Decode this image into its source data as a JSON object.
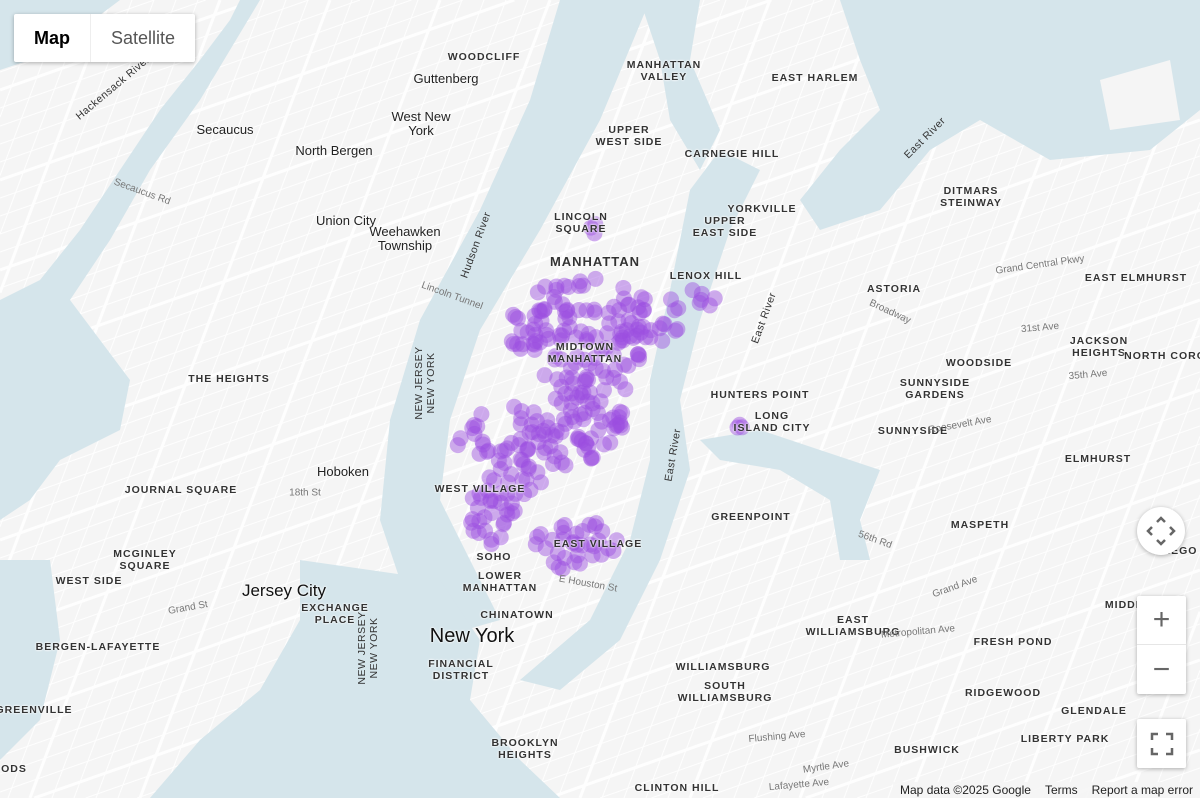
{
  "map_type": {
    "options": [
      "Map",
      "Satellite"
    ],
    "selected": "Map"
  },
  "controls": {
    "camera": "camera-control",
    "zoom_in": "+",
    "zoom_out": "−",
    "fullscreen": "fullscreen"
  },
  "attribution": {
    "data": "Map data ©2025 Google",
    "terms": "Terms",
    "report": "Report a map error"
  },
  "overlay": {
    "type": "heatmap-points",
    "color": "#9b4de0",
    "opacity": 0.45
  },
  "colors": {
    "water": "#d5e5eb",
    "land": "#f5f5f5",
    "road": "#ffffff"
  },
  "labels": {
    "new_york": "New York",
    "jersey_city": "Jersey City",
    "manhattan": "MANHATTAN",
    "midtown": "MIDTOWN\nMANHATTAN",
    "lincoln_square": "LINCOLN\nSQUARE",
    "manhattan_valley": "MANHATTAN\nVALLEY",
    "upper_west_side": "UPPER\nWEST SIDE",
    "carnegie_hill": "CARNEGIE HILL",
    "east_harlem": "EAST HARLEM",
    "yorkville": "YORKVILLE",
    "upper_east_side": "UPPER\nEAST SIDE",
    "lenox_hill": "LENOX HILL",
    "west_village": "WEST VILLAGE",
    "east_village": "EAST VILLAGE",
    "soho": "SOHO",
    "lower_manhattan": "LOWER\nMANHATTAN",
    "chinatown": "CHINATOWN",
    "financial_district": "FINANCIAL\nDISTRICT",
    "woodcliff": "WOODCLIFF",
    "guttenberg": "Guttenberg",
    "west_new_york": "West New\nYork",
    "secaucus": "Secaucus",
    "north_bergen": "North Bergen",
    "union_city": "Union City",
    "weehawken": "Weehawken\nTownship",
    "the_heights": "THE HEIGHTS",
    "hoboken": "Hoboken",
    "journal_square": "JOURNAL SQUARE",
    "mcginley_square": "MCGINLEY\nSQUARE",
    "west_side": "WEST SIDE",
    "exchange_place": "EXCHANGE\nPLACE",
    "bergen_lafayette": "BERGEN-LAFAYETTE",
    "greenville": "GREENVILLE",
    "woods": "ODS",
    "ditmars": "DITMARS\nSTEINWAY",
    "astoria": "ASTORIA",
    "east_elmhurst": "EAST ELMHURST",
    "jackson_heights": "JACKSON\nHEIGHTS",
    "north_corona": "NORTH CORO",
    "woodside": "WOODSIDE",
    "sunnyside_gardens": "SUNNYSIDE\nGARDENS",
    "sunnyside": "SUNNYSIDE",
    "hunters_point": "HUNTERS POINT",
    "long_island_city": "LONG\nISLAND CITY",
    "elmhurst": "ELMHURST",
    "greenpoint": "GREENPOINT",
    "maspeth": "MASPETH",
    "east_williamsburg": "EAST\nWILLIAMSBURG",
    "fresh_pond": "FRESH POND",
    "williamsburg": "WILLIAMSBURG",
    "south_williamsburg": "SOUTH\nWILLIAMSBURG",
    "ridgewood": "RIDGEWOOD",
    "glendale": "GLENDALE",
    "middle_village": "MIDDLI",
    "bushwick": "BUSHWICK",
    "liberty_park": "LIBERTY PARK",
    "brooklyn_heights": "BROOKLYN\nHEIGHTS",
    "clinton_hill": "CLINTON HILL",
    "rego": "REGO"
  },
  "water_labels": {
    "hudson": "Hudson River",
    "nj_ny_1": "NEW JERSEY\nNEW YORK",
    "nj_ny_2": "NEW JERSEY\nNEW YORK",
    "east_river_1": "East River",
    "east_river_2": "East River",
    "east_river_3": "East River",
    "hackensack": "Hackensack River"
  },
  "streets": {
    "s1": "Lincoln Tunnel",
    "s2": "Grand Central Pkwy",
    "s3": "Metropolitan Ave",
    "s4": "Grand Ave",
    "s5": "E Houston St",
    "s6": "Roosevelt Ave",
    "s7": "Flushing Ave",
    "s8": "Myrtle Ave",
    "s9": "Grand St",
    "s10": "Lafayette Ave",
    "s11": "Broadway",
    "s12": "35th Ave",
    "s13": "31st Ave",
    "s14": "56th Rd",
    "s15": "Secaucus Rd",
    "s16": "18th St"
  }
}
